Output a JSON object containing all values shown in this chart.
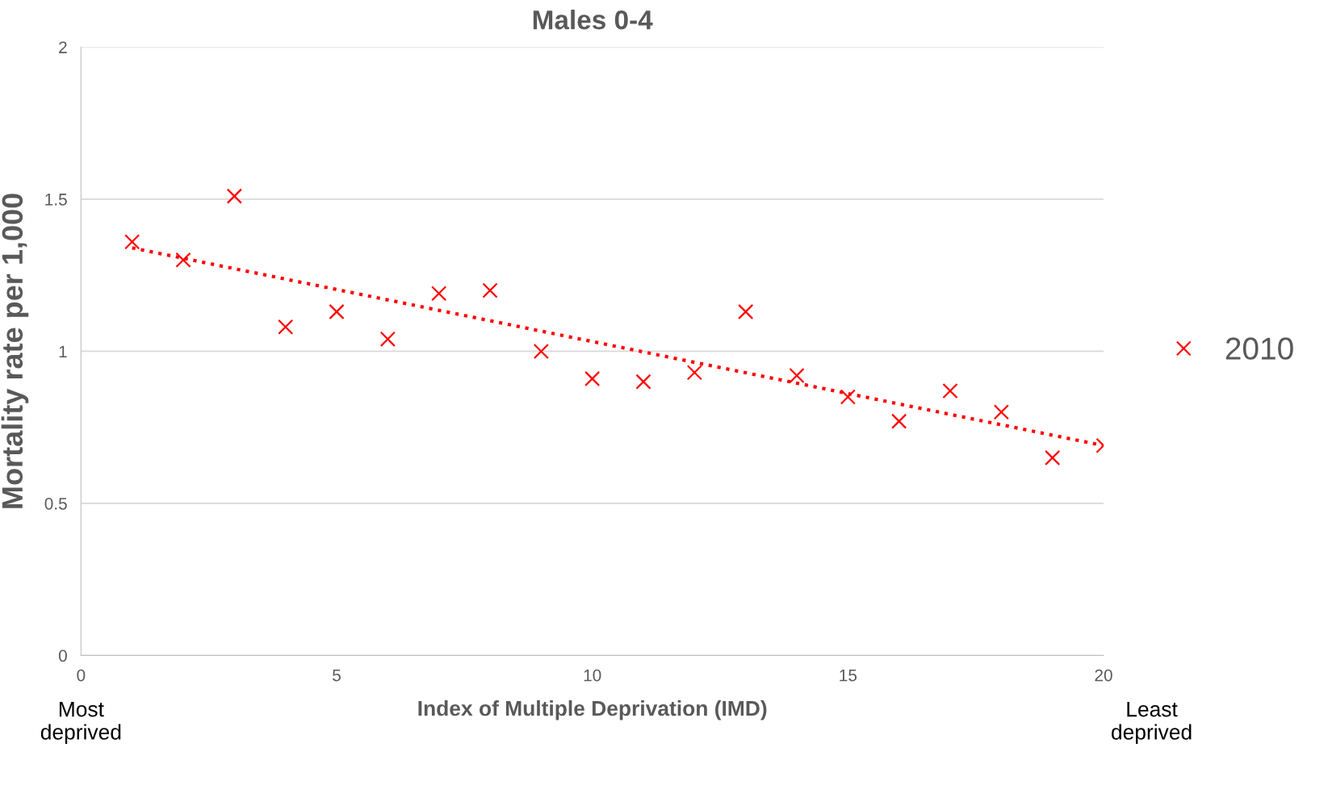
{
  "chart_data": {
    "type": "scatter",
    "title": "Males 0-4",
    "xlabel": "Index of Multiple Deprivation (IMD)",
    "ylabel": "Mortality rate per 1,000",
    "x": [
      1,
      2,
      3,
      4,
      5,
      6,
      7,
      8,
      9,
      10,
      11,
      12,
      13,
      14,
      15,
      16,
      17,
      18,
      19,
      20
    ],
    "series": [
      {
        "name": "2010",
        "color": "#ff0000",
        "marker": "cross",
        "values": [
          1.36,
          1.3,
          1.51,
          1.08,
          1.13,
          1.04,
          1.19,
          1.2,
          1.0,
          0.91,
          0.9,
          0.93,
          1.13,
          0.92,
          0.85,
          0.77,
          0.87,
          0.8,
          0.65,
          0.69
        ]
      },
      {
        "color": "#ff0000",
        "type": "line",
        "line_style": "dotted",
        "x": [
          1,
          20
        ],
        "values": [
          1.34,
          0.69
        ]
      }
    ],
    "xlim": [
      0,
      20
    ],
    "xticks": [
      0,
      5,
      10,
      15,
      20
    ],
    "ylim": [
      0,
      2
    ],
    "yticks": [
      0,
      0.5,
      1,
      1.5,
      2
    ],
    "grid": "y",
    "legend": "right",
    "annotations": [
      "Most\ndeprived",
      "Least\ndeprived"
    ]
  }
}
